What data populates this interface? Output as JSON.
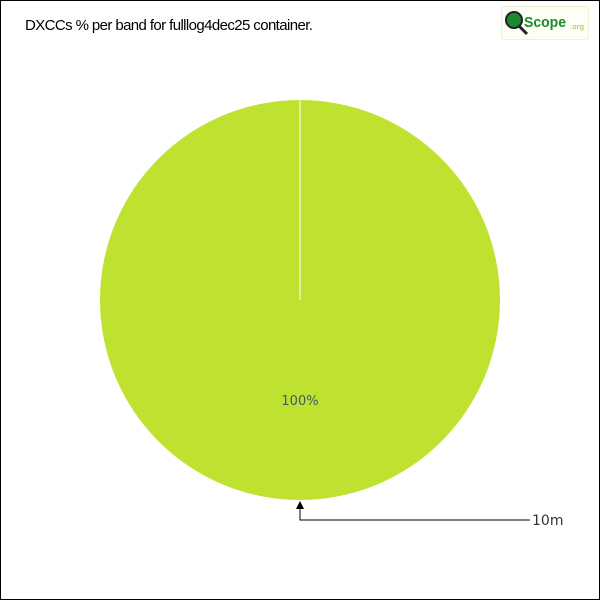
{
  "logo": {
    "text": "QScope.org",
    "brand_color": "#1a8a2e"
  },
  "chart_data": {
    "type": "pie",
    "title": "DXCCs % per band for fulllog4dec25 container.",
    "slices": [
      {
        "label": "10m",
        "value": 100,
        "percent_label": "100%",
        "color": "#BEE22F"
      }
    ],
    "legend": "none",
    "label_color": "#3c5a6e"
  }
}
